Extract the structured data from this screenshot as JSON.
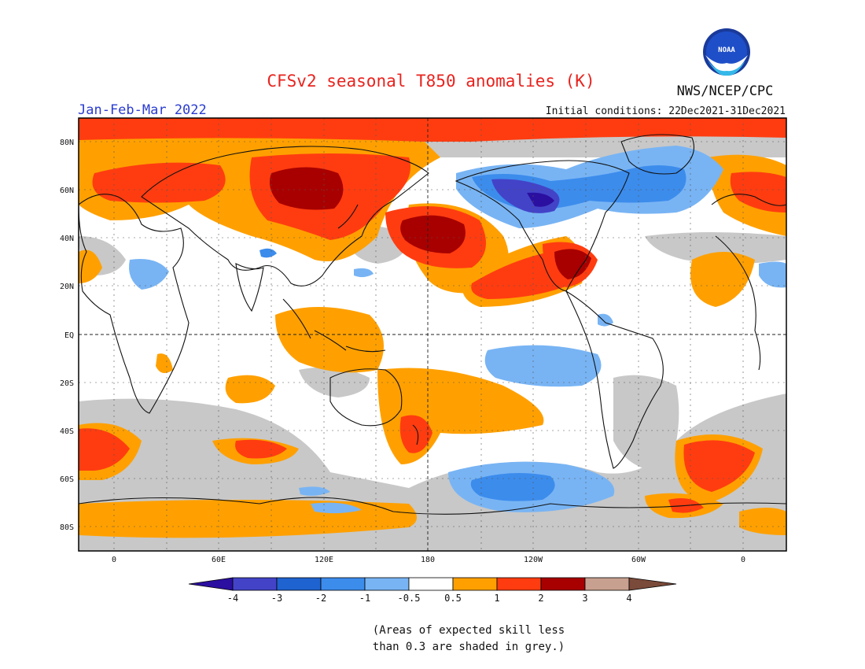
{
  "header": {
    "title": "CFSv2 seasonal T850 anomalies (K)",
    "period": "Jan-Feb-Mar 2022",
    "agency": "NWS/NCEP/CPC",
    "initial_conditions": "Initial conditions: 22Dec2021-31Dec2021",
    "logo_text": "NOAA"
  },
  "map": {
    "lat_labels": [
      "80N",
      "60N",
      "40N",
      "20N",
      "EQ",
      "20S",
      "40S",
      "60S",
      "80S"
    ],
    "lon_labels": [
      "0",
      "60E",
      "120E",
      "180",
      "120W",
      "60W",
      "0"
    ],
    "colors": {
      "skill_grey": "#c8c8c8",
      "ocean_white": "#ffffff",
      "coast": "#111111"
    }
  },
  "colorbar": {
    "labels": [
      "-4",
      "-3",
      "-2",
      "-1",
      "-0.5",
      "0.5",
      "1",
      "2",
      "3",
      "4"
    ],
    "colors": [
      "#2b0fa0",
      "#4343c8",
      "#1e63d0",
      "#3c8cec",
      "#78b4f4",
      "#ffffff",
      "#ffa000",
      "#ff3c10",
      "#a80000",
      "#c8a090",
      "#7a4a3a"
    ]
  },
  "note": {
    "line1": "(Areas of expected skill less",
    "line2": "than 0.3 are shaded in grey.)"
  }
}
